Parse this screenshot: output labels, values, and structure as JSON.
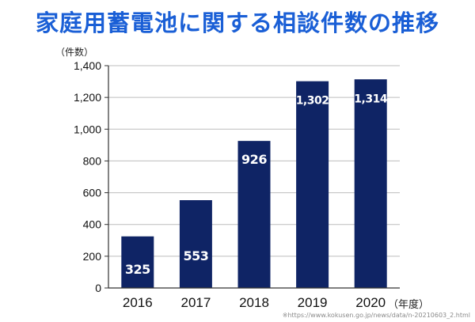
{
  "title": "家庭用蓄電池に関する相談件数の推移",
  "source_note": "※https://www.kokusen.go.jp/news/data/n-20210603_2.html",
  "colors": {
    "title": "#1a5fd6",
    "bar": "#0f2465",
    "grid": "#bdbdbd",
    "axis": "#333333",
    "label_text": "#ffffff"
  },
  "chart_data": {
    "type": "bar",
    "categories": [
      "2016",
      "2017",
      "2018",
      "2019",
      "2020"
    ],
    "values": [
      325,
      553,
      926,
      1302,
      1314
    ],
    "data_labels": [
      "325",
      "553",
      "926",
      "1,302",
      "1,314"
    ],
    "ylabel": "（件数）",
    "xlabel": "（年度）",
    "ylim": [
      0,
      1400
    ],
    "yticks": [
      0,
      200,
      400,
      600,
      800,
      1000,
      1200,
      1400
    ],
    "ytick_labels": [
      "0",
      "200",
      "400",
      "600",
      "800",
      "1,000",
      "1,200",
      "1,400"
    ],
    "grid": true
  }
}
